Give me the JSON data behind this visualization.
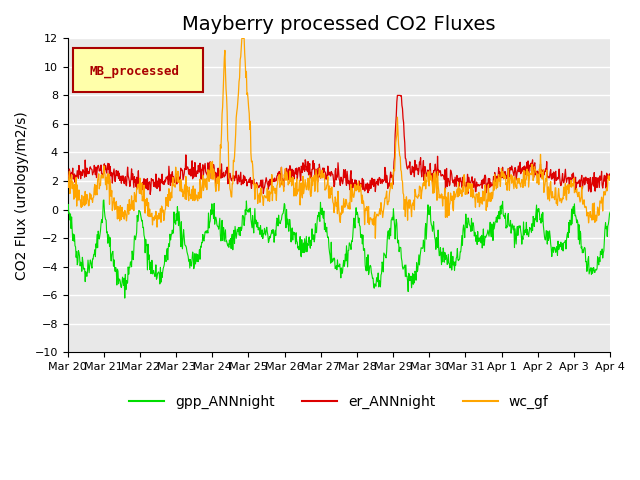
{
  "title": "Mayberry processed CO2 Fluxes",
  "ylabel": "CO2 Flux (urology/m2/s)",
  "ylim": [
    -10,
    12
  ],
  "yticks": [
    -10,
    -8,
    -6,
    -4,
    -2,
    0,
    2,
    4,
    6,
    8,
    10,
    12
  ],
  "xtick_labels": [
    "Mar 20",
    "Mar 21",
    "Mar 22",
    "Mar 23",
    "Mar 24",
    "Mar 25",
    "Mar 26",
    "Mar 27",
    "Mar 28",
    "Mar 29",
    "Mar 30",
    "Mar 31",
    "Apr 1",
    "Apr 2",
    "Apr 3",
    "Apr 4"
  ],
  "line_colors": {
    "gpp_ANNnight": "#00dd00",
    "er_ANNnight": "#dd0000",
    "wc_gf": "#ffa500"
  },
  "legend_label": "MB_processed",
  "legend_box_color": "#ffffaa",
  "legend_box_edge": "#aa0000",
  "legend_label_color": "#aa0000",
  "bg_color": "#ffffff",
  "plot_bg_color": "#e8e8e8",
  "grid_color": "#ffffff",
  "n_points": 960,
  "days": 15,
  "title_fontsize": 14,
  "axis_fontsize": 10,
  "tick_fontsize": 8,
  "legend_fontsize": 10
}
